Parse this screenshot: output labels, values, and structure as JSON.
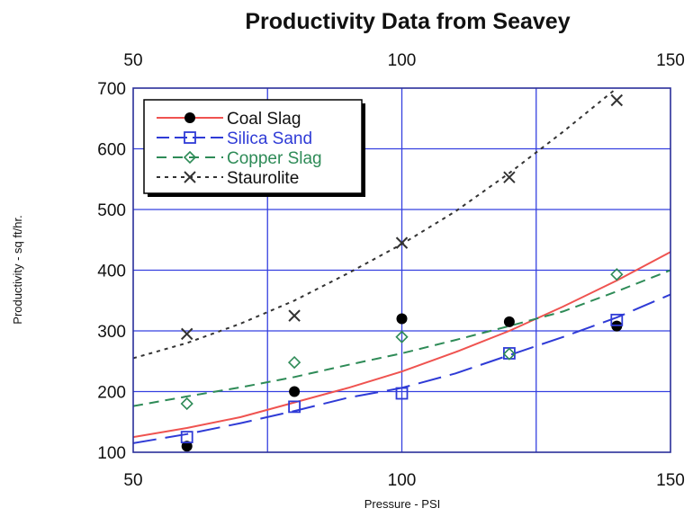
{
  "chart_data": {
    "type": "scatter",
    "title": "Productivity Data from Seavey",
    "xlabel": "Pressure - PSI",
    "ylabel": "Productivity - sq ft/hr.",
    "xlim": [
      50,
      150
    ],
    "ylim": [
      100,
      700
    ],
    "x_ticks": [
      "50",
      "100",
      "150"
    ],
    "top_x_ticks": [
      "50",
      "100",
      "150"
    ],
    "y_ticks": [
      "100",
      "200",
      "300",
      "400",
      "500",
      "600",
      "700"
    ],
    "grid": true,
    "legend_position": "top-left",
    "series": [
      {
        "name": "Coal Slag",
        "color": "#000000",
        "line_color": "#ef5350",
        "marker": "filled-circle",
        "line_style": "solid",
        "points": [
          [
            60,
            110
          ],
          [
            80,
            200
          ],
          [
            100,
            320
          ],
          [
            120,
            315
          ],
          [
            140,
            308
          ]
        ],
        "fit": [
          [
            50,
            125
          ],
          [
            60,
            140
          ],
          [
            70,
            158
          ],
          [
            80,
            182
          ],
          [
            90,
            206
          ],
          [
            100,
            233
          ],
          [
            110,
            265
          ],
          [
            120,
            300
          ],
          [
            130,
            340
          ],
          [
            140,
            383
          ],
          [
            150,
            430
          ]
        ]
      },
      {
        "name": "Silica Sand",
        "color": "#2f3bd6",
        "line_color": "#2f3bd6",
        "marker": "open-square",
        "line_style": "longdash",
        "points": [
          [
            60,
            125
          ],
          [
            80,
            175
          ],
          [
            100,
            197
          ],
          [
            120,
            263
          ],
          [
            140,
            318
          ]
        ],
        "fit": [
          [
            50,
            115
          ],
          [
            60,
            130
          ],
          [
            70,
            148
          ],
          [
            80,
            168
          ],
          [
            90,
            190
          ],
          [
            100,
            206
          ],
          [
            110,
            230
          ],
          [
            120,
            260
          ],
          [
            130,
            290
          ],
          [
            140,
            322
          ],
          [
            150,
            360
          ]
        ]
      },
      {
        "name": "Copper Slag",
        "color": "#2e8b57",
        "line_color": "#2e8b57",
        "marker": "open-diamond",
        "line_style": "dashed",
        "points": [
          [
            60,
            180
          ],
          [
            80,
            248
          ],
          [
            100,
            290
          ],
          [
            120,
            262
          ],
          [
            140,
            393
          ]
        ],
        "fit": [
          [
            50,
            176
          ],
          [
            60,
            192
          ],
          [
            70,
            207
          ],
          [
            80,
            224
          ],
          [
            90,
            244
          ],
          [
            100,
            263
          ],
          [
            110,
            285
          ],
          [
            120,
            308
          ],
          [
            130,
            332
          ],
          [
            140,
            365
          ],
          [
            150,
            400
          ]
        ]
      },
      {
        "name": "Staurolite",
        "color": "#333333",
        "line_color": "#333333",
        "marker": "x",
        "line_style": "dotted",
        "points": [
          [
            60,
            295
          ],
          [
            80,
            325
          ],
          [
            100,
            445
          ],
          [
            120,
            553
          ],
          [
            140,
            680
          ]
        ],
        "fit": [
          [
            50,
            255
          ],
          [
            60,
            280
          ],
          [
            70,
            312
          ],
          [
            80,
            350
          ],
          [
            90,
            395
          ],
          [
            100,
            443
          ],
          [
            110,
            497
          ],
          [
            120,
            560
          ],
          [
            130,
            628
          ],
          [
            140,
            700
          ]
        ]
      }
    ]
  }
}
